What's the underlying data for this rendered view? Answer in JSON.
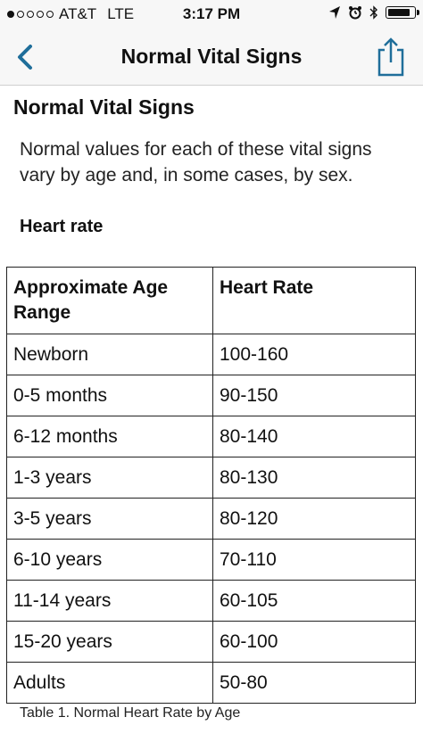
{
  "status_bar": {
    "carrier": "AT&T",
    "network": "LTE",
    "time": "3:17 PM",
    "signal_bars": 1,
    "battery_level": 0.9
  },
  "nav": {
    "title": "Normal Vital Signs",
    "back_icon": "chevron-left-icon",
    "share_icon": "share-icon",
    "accent_color": "#1f6e9a"
  },
  "content": {
    "heading": "Normal Vital Signs",
    "intro": "Normal values for each of these vital signs vary by age and, in some cases, by sex.",
    "section_heading": "Heart rate",
    "table": {
      "headers": [
        "Approximate Age Range",
        "Heart Rate"
      ],
      "rows": [
        [
          "Newborn",
          "100-160"
        ],
        [
          "0-5 months",
          "90-150"
        ],
        [
          "6-12 months",
          "80-140"
        ],
        [
          "1-3 years",
          "80-130"
        ],
        [
          "3-5 years",
          "80-120"
        ],
        [
          "6-10 years",
          "70-110"
        ],
        [
          "11-14 years",
          "60-105"
        ],
        [
          "15-20 years",
          "60-100"
        ],
        [
          "Adults",
          "50-80"
        ]
      ]
    },
    "caption": "Table 1. Normal Heart Rate by Age"
  }
}
